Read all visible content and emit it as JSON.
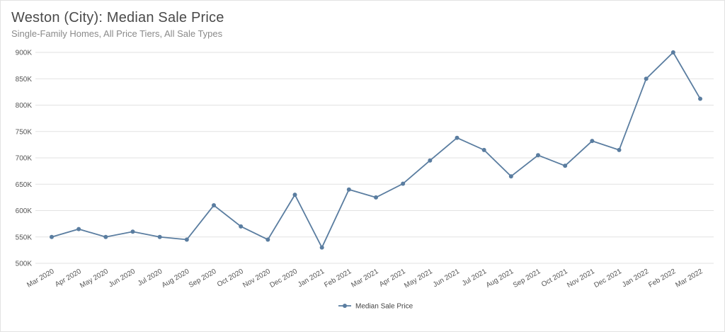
{
  "title": "Weston (City): Median Sale Price",
  "subtitle": "Single-Family Homes, All Price Tiers, All Sale Types",
  "colors": {
    "series": "#5a7da0",
    "grid": "#e2e2e2",
    "text": "#555555"
  },
  "chart_data": {
    "type": "line",
    "title": "Weston (City): Median Sale Price",
    "subtitle": "Single-Family Homes, All Price Tiers, All Sale Types",
    "xlabel": "",
    "ylabel": "",
    "ylim": [
      500000,
      900000
    ],
    "grid": true,
    "legend": "bottom",
    "yticks": [
      {
        "value": 500000,
        "label": "500K"
      },
      {
        "value": 550000,
        "label": "550K"
      },
      {
        "value": 600000,
        "label": "600K"
      },
      {
        "value": 650000,
        "label": "650K"
      },
      {
        "value": 700000,
        "label": "700K"
      },
      {
        "value": 750000,
        "label": "750K"
      },
      {
        "value": 800000,
        "label": "800K"
      },
      {
        "value": 850000,
        "label": "850K"
      },
      {
        "value": 900000,
        "label": "900K"
      }
    ],
    "categories": [
      "Mar 2020",
      "Apr 2020",
      "May 2020",
      "Jun 2020",
      "Jul 2020",
      "Aug 2020",
      "Sep 2020",
      "Oct 2020",
      "Nov 2020",
      "Dec 2020",
      "Jan 2021",
      "Feb 2021",
      "Mar 2021",
      "Apr 2021",
      "May 2021",
      "Jun 2021",
      "Jul 2021",
      "Aug 2021",
      "Sep 2021",
      "Oct 2021",
      "Nov 2021",
      "Dec 2021",
      "Jan 2022",
      "Feb 2022",
      "Mar 2022"
    ],
    "series": [
      {
        "name": "Median Sale Price",
        "values": [
          550000,
          565000,
          550000,
          560000,
          550000,
          545000,
          610000,
          570000,
          545000,
          630000,
          530000,
          640000,
          625000,
          651000,
          695000,
          738000,
          715000,
          665000,
          705000,
          685000,
          732000,
          715000,
          850000,
          900000,
          812000
        ]
      }
    ]
  }
}
